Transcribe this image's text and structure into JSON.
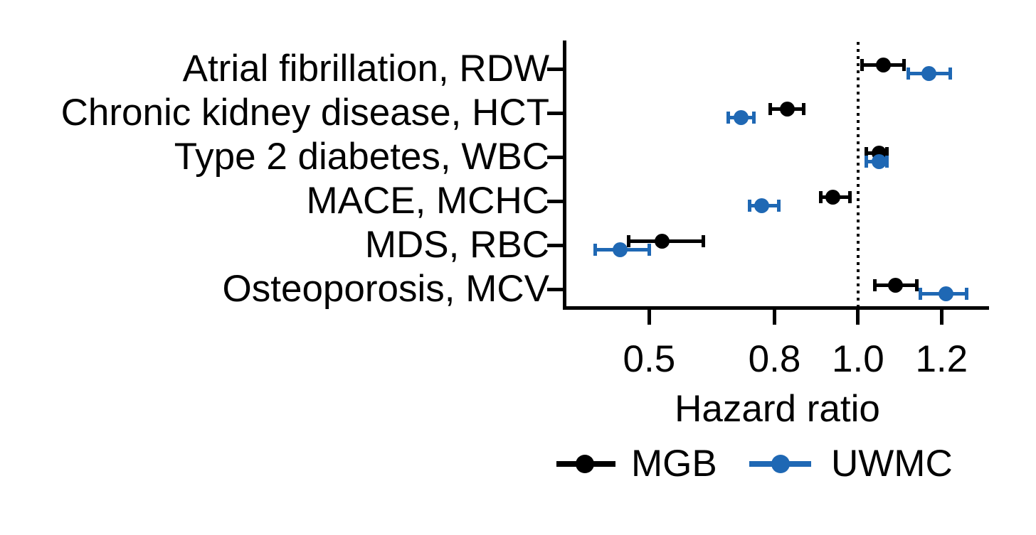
{
  "chart_data": {
    "type": "forest-pointrange",
    "title": "",
    "xlabel": "Hazard ratio",
    "x_axis": {
      "scale": "linear",
      "range": [
        0.3,
        1.31
      ],
      "ticks": [
        0.5,
        0.8,
        1.0,
        1.2
      ],
      "tick_labels": [
        "0.5",
        "0.8",
        "1.0",
        "1.2"
      ]
    },
    "reference_line": 1.0,
    "categories": [
      "Atrial fibrillation, RDW",
      "Chronic kidney disease, HCT",
      "Type 2 diabetes, WBC",
      "MACE, MCHC",
      "MDS, RBC",
      "Osteoporosis, MCV"
    ],
    "series": [
      {
        "name": "MGB",
        "color": "#000000",
        "points": [
          {
            "est": 1.06,
            "lo": 1.01,
            "hi": 1.11
          },
          {
            "est": 0.83,
            "lo": 0.79,
            "hi": 0.87
          },
          {
            "est": 1.05,
            "lo": 1.02,
            "hi": 1.07
          },
          {
            "est": 0.94,
            "lo": 0.91,
            "hi": 0.98
          },
          {
            "est": 0.53,
            "lo": 0.45,
            "hi": 0.63
          },
          {
            "est": 1.09,
            "lo": 1.04,
            "hi": 1.14
          }
        ]
      },
      {
        "name": "UWMC",
        "color": "#1f68b4",
        "points": [
          {
            "est": 1.17,
            "lo": 1.12,
            "hi": 1.22
          },
          {
            "est": 0.72,
            "lo": 0.69,
            "hi": 0.75
          },
          {
            "est": 1.05,
            "lo": 1.02,
            "hi": 1.07
          },
          {
            "est": 0.77,
            "lo": 0.74,
            "hi": 0.81
          },
          {
            "est": 0.43,
            "lo": 0.37,
            "hi": 0.5
          },
          {
            "est": 1.21,
            "lo": 1.15,
            "hi": 1.26
          }
        ]
      }
    ],
    "legend": {
      "position": "bottom",
      "entries": [
        "MGB",
        "UWMC"
      ]
    }
  }
}
